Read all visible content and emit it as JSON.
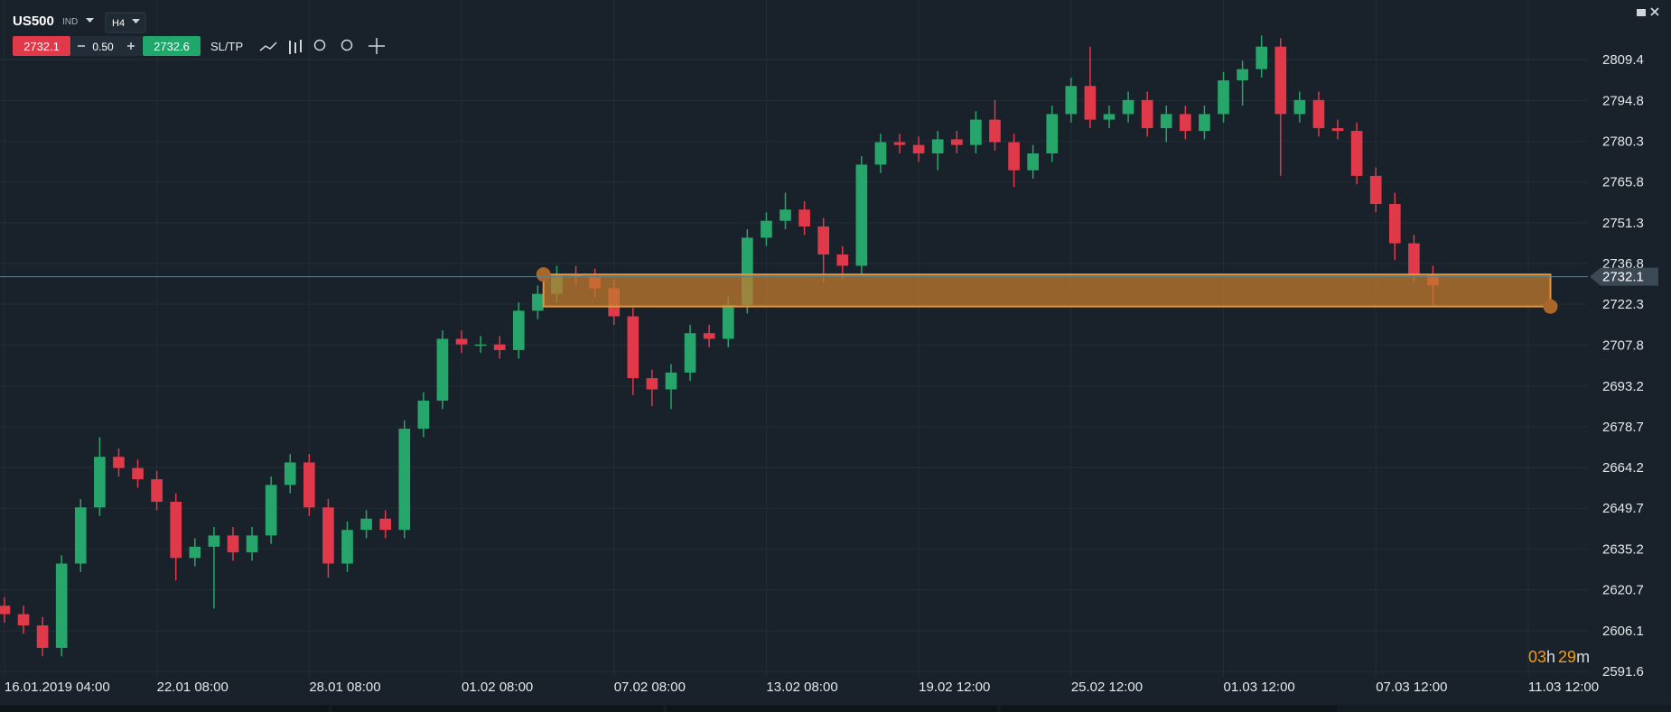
{
  "toolbar": {
    "symbol": "US500",
    "market": "IND",
    "timeframe": "H4",
    "bid": "2732.1",
    "spread": "0.50",
    "ask": "2732.6",
    "sltp": "SL/TP"
  },
  "timer": [
    "03",
    "h",
    "29",
    "m"
  ],
  "chart_data": {
    "type": "candlestick",
    "x": [
      0,
      3,
      6,
      9,
      12,
      15,
      18,
      21,
      24,
      27,
      30,
      33,
      36,
      39,
      42,
      45,
      48,
      51,
      54,
      57,
      60,
      63,
      66,
      69,
      72,
      75,
      78,
      81,
      84,
      87,
      90,
      93,
      96,
      99,
      102,
      105,
      108,
      111,
      114,
      117,
      120,
      123,
      126,
      129,
      132,
      135,
      138,
      141,
      144,
      147,
      150,
      153,
      156,
      159,
      162,
      165,
      168,
      171,
      174,
      177,
      180,
      183,
      186,
      189,
      192,
      195,
      198,
      201,
      204,
      207,
      210,
      213,
      216,
      219,
      222,
      225
    ],
    "open": [
      2615,
      2612,
      2608,
      2600,
      2630,
      2650,
      2668,
      2664,
      2660,
      2652,
      2632,
      2636,
      2640,
      2634,
      2640,
      2658,
      2666,
      2650,
      2630,
      2642,
      2646,
      2642,
      2678,
      2688,
      2710,
      2708,
      2708,
      2706,
      2720,
      2726,
      2733,
      2732,
      2728,
      2718,
      2696,
      2692,
      2698,
      2712,
      2710,
      2722,
      2746,
      2752,
      2756,
      2750,
      2740,
      2736,
      2772,
      2780,
      2779,
      2776,
      2781,
      2779,
      2788,
      2780,
      2770,
      2776,
      2790,
      2800,
      2788,
      2790,
      2795,
      2785,
      2790,
      2784,
      2790,
      2802,
      2806,
      2814,
      2790,
      2795,
      2785,
      2784,
      2768,
      2758,
      2744,
      2733
    ],
    "high": [
      2618,
      2615,
      2611,
      2633,
      2653,
      2675,
      2671,
      2667,
      2663,
      2655,
      2639,
      2643,
      2643,
      2643,
      2661,
      2669,
      2669,
      2653,
      2645,
      2649,
      2649,
      2681,
      2691,
      2713,
      2713,
      2711,
      2711,
      2723,
      2729,
      2736,
      2736,
      2735,
      2731,
      2721,
      2699,
      2701,
      2715,
      2715,
      2725,
      2749,
      2755,
      2762,
      2759,
      2753,
      2743,
      2775,
      2783,
      2783,
      2782,
      2784,
      2784,
      2791,
      2795,
      2783,
      2779,
      2793,
      2803,
      2814,
      2793,
      2798,
      2798,
      2793,
      2793,
      2793,
      2805,
      2809,
      2818,
      2817,
      2798,
      2798,
      2788,
      2787,
      2771,
      2762,
      2747,
      2736
    ],
    "low": [
      2609,
      2605,
      2597,
      2597,
      2627,
      2647,
      2661,
      2657,
      2649,
      2624,
      2629,
      2614,
      2631,
      2631,
      2637,
      2655,
      2647,
      2625,
      2627,
      2639,
      2639,
      2639,
      2675,
      2685,
      2705,
      2705,
      2703,
      2703,
      2717,
      2723,
      2729,
      2725,
      2715,
      2690,
      2686,
      2685,
      2695,
      2707,
      2707,
      2719,
      2743,
      2749,
      2747,
      2730,
      2731,
      2733,
      2769,
      2776,
      2773,
      2770,
      2776,
      2776,
      2777,
      2764,
      2767,
      2773,
      2787,
      2785,
      2785,
      2787,
      2782,
      2780,
      2781,
      2781,
      2787,
      2793,
      2803,
      2768,
      2787,
      2782,
      2781,
      2765,
      2755,
      2738,
      2730,
      2722
    ],
    "close": [
      2612,
      2608,
      2600,
      2630,
      2650,
      2668,
      2664,
      2660,
      2652,
      2632,
      2636,
      2640,
      2634,
      2640,
      2658,
      2666,
      2650,
      2630,
      2642,
      2646,
      2642,
      2678,
      2688,
      2710,
      2708,
      2708,
      2706,
      2720,
      2726,
      2733,
      2732,
      2728,
      2718,
      2696,
      2692,
      2698,
      2712,
      2710,
      2722,
      2746,
      2752,
      2756,
      2750,
      2740,
      2736,
      2772,
      2780,
      2779,
      2776,
      2781,
      2779,
      2788,
      2780,
      2770,
      2776,
      2790,
      2800,
      2788,
      2790,
      2795,
      2785,
      2790,
      2784,
      2790,
      2802,
      2806,
      2814,
      2790,
      2795,
      2785,
      2784,
      2768,
      2758,
      2744,
      2733,
      2729
    ],
    "up_color": "#26a66b",
    "down_color": "#e0394a",
    "xlim": [
      -0.7,
      249.4
    ],
    "xticks": [
      {
        "value": 0,
        "label": "16.01.2019 04:00"
      },
      {
        "value": 24,
        "label": "22.01 08:00"
      },
      {
        "value": 48,
        "label": "28.01 08:00"
      },
      {
        "value": 72,
        "label": "01.02 08:00"
      },
      {
        "value": 96,
        "label": "07.02 08:00"
      },
      {
        "value": 120,
        "label": "13.02 08:00"
      },
      {
        "value": 144,
        "label": "19.02 12:00"
      },
      {
        "value": 168,
        "label": "25.02 12:00"
      },
      {
        "value": 192,
        "label": "01.03 12:00"
      },
      {
        "value": 216,
        "label": "07.03 12:00"
      },
      {
        "value": 240,
        "label": "11.03 12:00"
      }
    ],
    "ylim": [
      2589.7,
      2830.6
    ],
    "yticks": [
      2591.6,
      2606.1,
      2620.7,
      2635.2,
      2649.7,
      2664.2,
      2678.7,
      2693.2,
      2707.8,
      2722.3,
      2736.8,
      2751.3,
      2765.8,
      2780.3,
      2794.8,
      2809.4
    ],
    "grid": true,
    "last_price": 2732.1,
    "zone": {
      "x": [
        84.9,
        243.5
      ],
      "y": [
        2721.5,
        2732.9
      ],
      "color": "#c27a2e"
    }
  }
}
